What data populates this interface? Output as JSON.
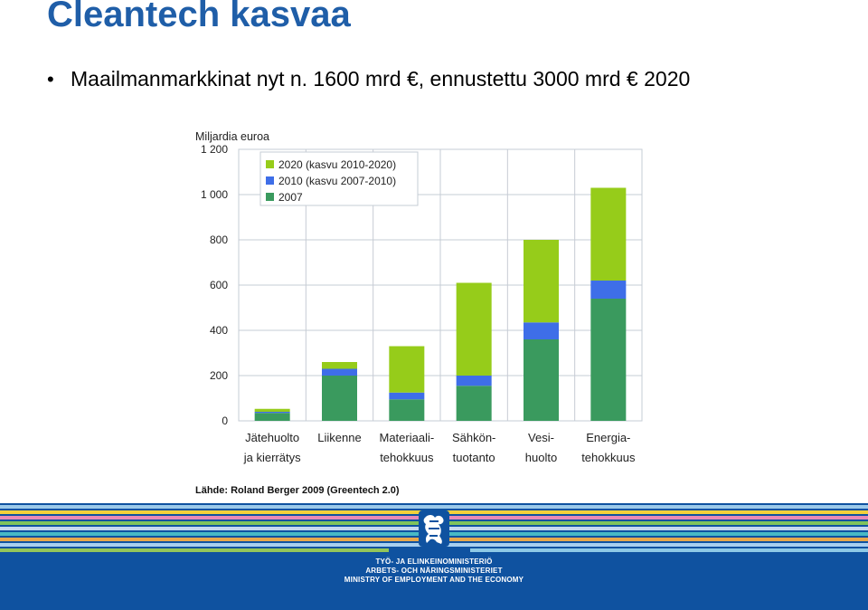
{
  "slide": {
    "title": "Cleantech kasvaa",
    "bullet": "Maailmanmarkkinat nyt n. 1600 mrd €, ennustettu 3000 mrd € 2020"
  },
  "chart_data": {
    "type": "bar",
    "stacked": true,
    "ylabel": "Miljardia euroa",
    "ylim": [
      0,
      1200
    ],
    "yticks": [
      0,
      200,
      400,
      600,
      800,
      1000,
      1200
    ],
    "ytick_labels": [
      "0",
      "200",
      "400",
      "600",
      "800",
      "1 000",
      "1 200"
    ],
    "categories": [
      [
        "Jätehuolto",
        "ja kierrätys"
      ],
      [
        "Liikenne"
      ],
      [
        "Materiaali-",
        "tehokkuus"
      ],
      [
        "Sähkön-",
        "tuotanto"
      ],
      [
        "Vesi-",
        "huolto"
      ],
      [
        "Energia-",
        "tehokkuus"
      ]
    ],
    "series": [
      {
        "name": "2007",
        "color": "#3a9a5e",
        "values": [
          35,
          200,
          95,
          155,
          360,
          540
        ]
      },
      {
        "name": "2010 (kasvu 2007-2010)",
        "color": "#3e6ee8",
        "values": [
          5,
          30,
          30,
          45,
          75,
          80
        ]
      },
      {
        "name": "2020 (kasvu 2010-2020)",
        "color": "#96cc1a",
        "values": [
          13,
          30,
          205,
          410,
          365,
          410
        ]
      }
    ],
    "legend_position": "top-left",
    "grid": true
  },
  "source": "Lähde: Roland Berger 2009 (Greentech 2.0)",
  "footer": {
    "lines": [
      "TYÖ- JA ELINKEINOMINISTERIÖ",
      "ARBETS- OCH NÄRINGSMINISTERIET",
      "MINISTRY OF EMPLOYMENT AND THE ECONOMY"
    ]
  }
}
